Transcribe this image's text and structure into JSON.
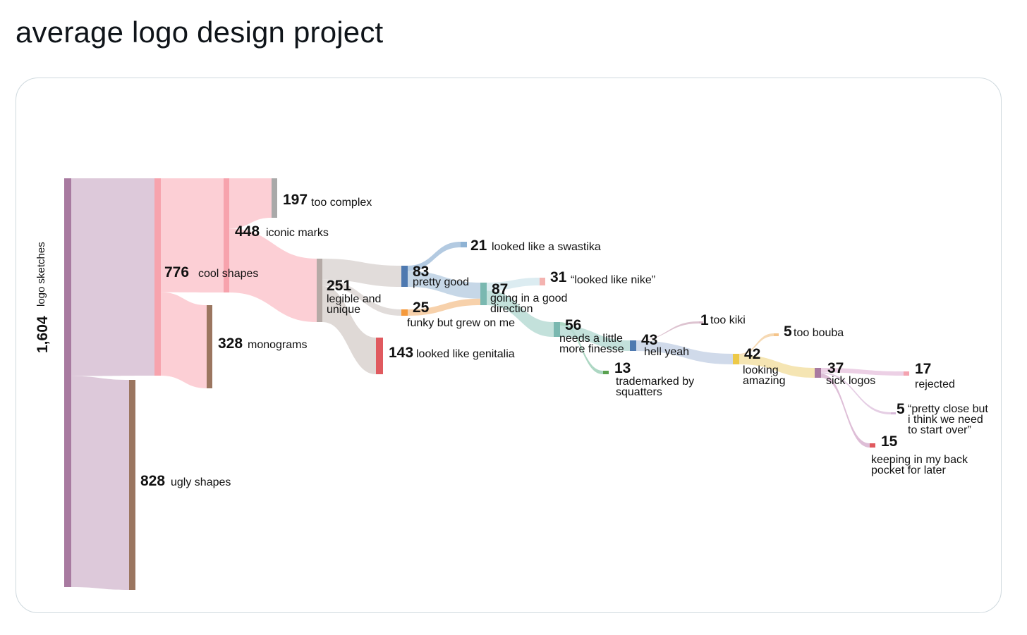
{
  "post": {
    "title": "average logo design project"
  },
  "chart_data": {
    "type": "sankey",
    "title": "average logo design project",
    "nodes": [
      {
        "id": "logo_sketches",
        "value": "1,604",
        "label": "logo sketches",
        "color": "#a87aa0"
      },
      {
        "id": "cool_shapes",
        "value": "776",
        "label": "cool shapes",
        "color": "#f7a3ad"
      },
      {
        "id": "ugly_shapes",
        "value": "828",
        "label": "ugly shapes",
        "color": "#9b7660"
      },
      {
        "id": "iconic_marks",
        "value": "448",
        "label": "iconic marks",
        "color": "#f7a3ad"
      },
      {
        "id": "monograms",
        "value": "328",
        "label": "monograms",
        "color": "#9b7660"
      },
      {
        "id": "too_complex",
        "value": "197",
        "label": "too complex",
        "color": "#a9a9a9"
      },
      {
        "id": "legible_unique",
        "value": "251",
        "label_lines": [
          "legible and",
          "unique"
        ],
        "color": "#b5aaa6"
      },
      {
        "id": "genitalia",
        "value": "143",
        "label": "looked like genitalia",
        "color": "#e05a5f"
      },
      {
        "id": "pretty_good",
        "value": "83",
        "label": "pretty good",
        "color": "#4e79b0"
      },
      {
        "id": "funky",
        "value": "25",
        "label": "funky but grew on me",
        "color": "#f59a3c"
      },
      {
        "id": "swastika",
        "value": "21",
        "label": "looked like a swastika",
        "color": "#8fb3d4"
      },
      {
        "id": "going_good",
        "value": "87",
        "label_lines": [
          "going in a good",
          "direction"
        ],
        "color": "#7ab8b0"
      },
      {
        "id": "nike",
        "value": "31",
        "label": "“looked like nike”",
        "color": "#f4b3b0"
      },
      {
        "id": "finesse",
        "value": "56",
        "label_lines": [
          "needs a little",
          "more finesse"
        ],
        "color": "#7ab8b0"
      },
      {
        "id": "hell_yeah",
        "value": "43",
        "label": "hell yeah",
        "color": "#4e79b0"
      },
      {
        "id": "squatters",
        "value": "13",
        "label_lines": [
          "trademarked by",
          "squatters"
        ],
        "color": "#59a14f"
      },
      {
        "id": "too_kiki",
        "value": "1",
        "label": "too kiki",
        "color": "#d7b8c8"
      },
      {
        "id": "looking_amazing",
        "value": "42",
        "label_lines": [
          "looking",
          "amazing"
        ],
        "color": "#edc948"
      },
      {
        "id": "too_bouba",
        "value": "5",
        "label": "too bouba",
        "color": "#f5c48a"
      },
      {
        "id": "sick_logos",
        "value": "37",
        "label": "sick logos",
        "color": "#a87aa0"
      },
      {
        "id": "rejected",
        "value": "17",
        "label": "rejected",
        "color": "#f4a3b0"
      },
      {
        "id": "start_over",
        "value": "5",
        "label_lines": [
          "“pretty close but",
          "i think we need",
          "to start over”"
        ],
        "color": "#d7b8d8"
      },
      {
        "id": "back_pocket",
        "value": "15",
        "label_lines": [
          "keeping in my back",
          "pocket for later"
        ],
        "color": "#e05a5f"
      }
    ],
    "links": [
      {
        "source": "logo_sketches",
        "target": "cool_shapes",
        "value": 776
      },
      {
        "source": "logo_sketches",
        "target": "ugly_shapes",
        "value": 828
      },
      {
        "source": "cool_shapes",
        "target": "iconic_marks",
        "value": 448
      },
      {
        "source": "cool_shapes",
        "target": "monograms",
        "value": 328
      },
      {
        "source": "iconic_marks",
        "target": "too_complex",
        "value": 197
      },
      {
        "source": "iconic_marks",
        "target": "legible_unique",
        "value": 251
      },
      {
        "source": "legible_unique",
        "target": "pretty_good",
        "value": 83
      },
      {
        "source": "legible_unique",
        "target": "funky",
        "value": 25
      },
      {
        "source": "legible_unique",
        "target": "genitalia",
        "value": 143
      },
      {
        "source": "pretty_good",
        "target": "swastika",
        "value": 21
      },
      {
        "source": "pretty_good",
        "target": "going_good",
        "value": 62
      },
      {
        "source": "funky",
        "target": "going_good",
        "value": 25
      },
      {
        "source": "going_good",
        "target": "nike",
        "value": 31
      },
      {
        "source": "going_good",
        "target": "finesse",
        "value": 56
      },
      {
        "source": "finesse",
        "target": "squatters",
        "value": 13
      },
      {
        "source": "finesse",
        "target": "hell_yeah",
        "value": 43
      },
      {
        "source": "hell_yeah",
        "target": "too_kiki",
        "value": 1
      },
      {
        "source": "hell_yeah",
        "target": "looking_amazing",
        "value": 42
      },
      {
        "source": "looking_amazing",
        "target": "too_bouba",
        "value": 5
      },
      {
        "source": "looking_amazing",
        "target": "sick_logos",
        "value": 37
      },
      {
        "source": "sick_logos",
        "target": "rejected",
        "value": 17
      },
      {
        "source": "sick_logos",
        "target": "start_over",
        "value": 5
      },
      {
        "source": "sick_logos",
        "target": "back_pocket",
        "value": 15
      }
    ]
  }
}
